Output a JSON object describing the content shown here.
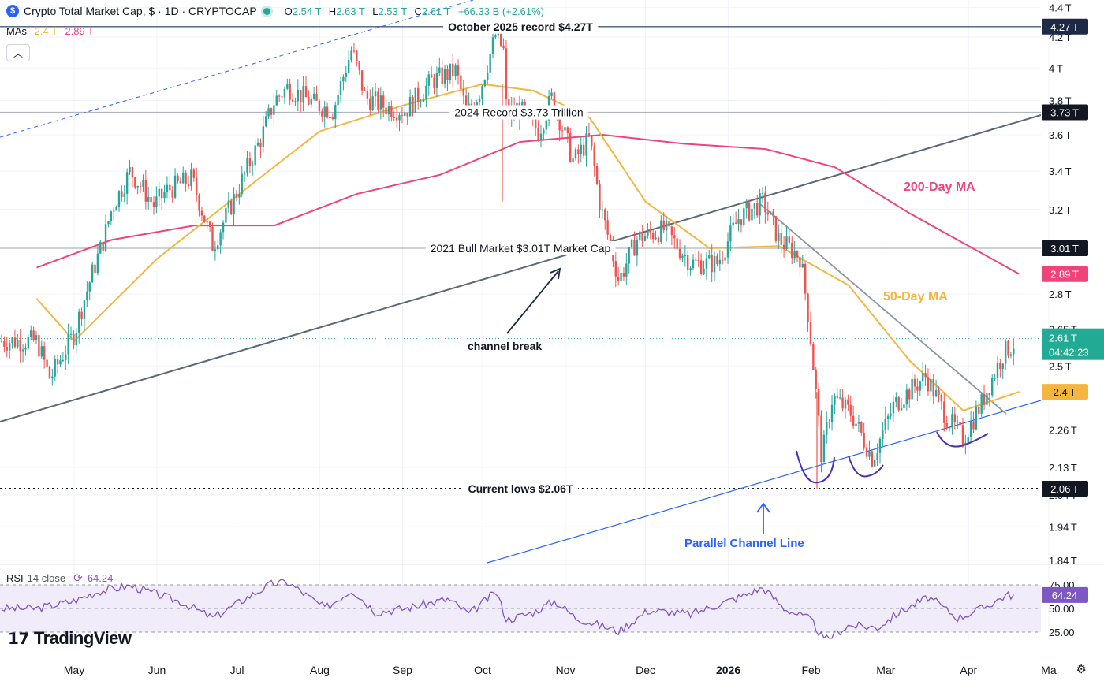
{
  "header": {
    "title": "Crypto Total Market Cap, $ · 1D · CRYPTOCAP",
    "open_label": "O",
    "open": "2.54 T",
    "high_label": "H",
    "high": "2.63 T",
    "low_label": "L",
    "low": "2.53 T",
    "close_label": "C",
    "close": "2.61 T",
    "change": "+66.33 B (+2.61%)",
    "mas_label": "MAs",
    "ma50_value": "2.4 T",
    "ma200_value": "2.89 T",
    "collapse_icon": "chevron-up-icon"
  },
  "rsi_header": {
    "label": "RSI",
    "params": "14 close",
    "value": "64.24",
    "icon": "refresh-icon"
  },
  "branding": {
    "name": "TradingView",
    "settings_icon": "gear-icon"
  },
  "colors": {
    "up": "#26a69a",
    "down": "#ef5350",
    "ma50": "#f4b63f",
    "ma200": "#f0437c",
    "rsi": "#7e57c2",
    "trendline": "#5d6778",
    "channel": "#2962ff"
  },
  "chart_data": {
    "type": "candlestick",
    "title": "Crypto Total Market Cap",
    "yscale": "log",
    "ylim": [
      "1.84 T",
      "4.4 T"
    ],
    "price_axis_ticks": [
      "4.4 T",
      "4.2 T",
      "4 T",
      "3.8 T",
      "3.6 T",
      "3.4 T",
      "3.2 T",
      "2.8 T",
      "2.65 T",
      "2.5 T",
      "2.26 T",
      "2.13 T",
      "2.04 T",
      "1.94 T",
      "1.84 T"
    ],
    "time_axis_ticks": [
      "May",
      "Jun",
      "Jul",
      "Aug",
      "Sep",
      "Oct",
      "Nov",
      "Dec",
      "2026",
      "Feb",
      "Mar",
      "Apr",
      "Ma"
    ],
    "price_path": [
      [
        "2025-04-17",
        2.6
      ],
      [
        "2025-04-22",
        2.45
      ],
      [
        "2025-05-01",
        2.63
      ],
      [
        "2025-05-08",
        2.9
      ],
      [
        "2025-05-12",
        3.05
      ],
      [
        "2025-05-15",
        3.2
      ],
      [
        "2025-05-22",
        3.4
      ],
      [
        "2025-05-31",
        3.22
      ],
      [
        "2025-06-05",
        3.3
      ],
      [
        "2025-06-14",
        3.36
      ],
      [
        "2025-06-22",
        3.02
      ],
      [
        "2025-06-30",
        3.26
      ],
      [
        "2025-07-10",
        3.58
      ],
      [
        "2025-07-15",
        3.8
      ],
      [
        "2025-07-20",
        3.88
      ],
      [
        "2025-07-30",
        3.78
      ],
      [
        "2025-08-06",
        3.74
      ],
      [
        "2025-08-13",
        4.12
      ],
      [
        "2025-08-18",
        3.82
      ],
      [
        "2025-08-26",
        3.76
      ],
      [
        "2025-09-02",
        3.74
      ],
      [
        "2025-09-12",
        3.92
      ],
      [
        "2025-09-21",
        3.98
      ],
      [
        "2025-09-25",
        3.72
      ],
      [
        "2025-09-30",
        3.86
      ],
      [
        "2025-10-06",
        4.22
      ],
      [
        "2025-10-09",
        4.1
      ],
      [
        "2025-10-10",
        3.7
      ],
      [
        "2025-10-14",
        3.76
      ],
      [
        "2025-10-22",
        3.62
      ],
      [
        "2025-10-27",
        3.82
      ],
      [
        "2025-11-04",
        3.45
      ],
      [
        "2025-11-10",
        3.58
      ],
      [
        "2025-11-14",
        3.22
      ],
      [
        "2025-11-21",
        2.86
      ],
      [
        "2025-11-28",
        3.06
      ],
      [
        "2025-12-08",
        3.1
      ],
      [
        "2025-12-18",
        2.94
      ],
      [
        "2025-12-28",
        2.94
      ],
      [
        "2026-01-05",
        3.16
      ],
      [
        "2026-01-14",
        3.24
      ],
      [
        "2026-01-20",
        3.05
      ],
      [
        "2026-01-28",
        2.97
      ],
      [
        "2026-01-31",
        2.7
      ],
      [
        "2026-02-05",
        2.16
      ],
      [
        "2026-02-09",
        2.38
      ],
      [
        "2026-02-16",
        2.32
      ],
      [
        "2026-02-24",
        2.16
      ],
      [
        "2026-03-04",
        2.35
      ],
      [
        "2026-03-16",
        2.46
      ],
      [
        "2026-03-24",
        2.3
      ],
      [
        "2026-03-30",
        2.23
      ],
      [
        "2026-04-06",
        2.36
      ],
      [
        "2026-04-14",
        2.55
      ],
      [
        "2026-04-20",
        2.61
      ]
    ],
    "ma50_path": [
      [
        "2025-04-17",
        2.78
      ],
      [
        "2025-05-01",
        2.6
      ],
      [
        "2025-06-01",
        2.96
      ],
      [
        "2025-07-01",
        3.27
      ],
      [
        "2025-08-01",
        3.62
      ],
      [
        "2025-09-01",
        3.77
      ],
      [
        "2025-10-01",
        3.9
      ],
      [
        "2025-10-20",
        3.86
      ],
      [
        "2025-11-10",
        3.7
      ],
      [
        "2025-12-01",
        3.24
      ],
      [
        "2025-12-25",
        3.01
      ],
      [
        "2026-01-20",
        3.02
      ],
      [
        "2026-02-15",
        2.84
      ],
      [
        "2026-03-10",
        2.52
      ],
      [
        "2026-03-30",
        2.33
      ],
      [
        "2026-04-20",
        2.4
      ]
    ],
    "ma200_path": [
      [
        "2025-04-17",
        2.92
      ],
      [
        "2025-05-15",
        3.05
      ],
      [
        "2025-06-15",
        3.12
      ],
      [
        "2025-07-15",
        3.12
      ],
      [
        "2025-08-15",
        3.28
      ],
      [
        "2025-09-15",
        3.38
      ],
      [
        "2025-10-15",
        3.56
      ],
      [
        "2025-11-15",
        3.6
      ],
      [
        "2025-12-15",
        3.55
      ],
      [
        "2026-01-15",
        3.52
      ],
      [
        "2026-02-10",
        3.42
      ],
      [
        "2026-03-10",
        3.18
      ],
      [
        "2026-04-20",
        2.89
      ]
    ],
    "horizontal_levels": [
      {
        "value": "4.27 T",
        "label": "October 2025 record $4.27T",
        "style": "solid-dark"
      },
      {
        "value": "3.73 T",
        "label": "2024 Record $3.73 Trillion",
        "style": "solid-gray"
      },
      {
        "value": "3.01 T",
        "label": "2021 Bull Market $3.01T Market Cap",
        "style": "solid-gray"
      },
      {
        "value": "2.06 T",
        "label": "Current lows $2.06T",
        "style": "dotted"
      }
    ],
    "annotations": [
      "channel break",
      "Parallel Channel Line",
      "200-Day MA",
      "50-Day MA"
    ],
    "price_labels": {
      "last": "2.61 T",
      "countdown": "04:42:23",
      "ma50": "2.4 T",
      "ma200": "2.89 T",
      "record": "4.27 T",
      "record2024": "3.73 T",
      "bull2021": "3.01 T",
      "lows": "2.06 T"
    },
    "rsi": {
      "ticks": [
        "75.00",
        "50.00",
        "25.00"
      ],
      "value": "64.24",
      "path": [
        [
          "2025-04-17",
          50
        ],
        [
          "2025-05-01",
          58
        ],
        [
          "2025-05-10",
          68
        ],
        [
          "2025-05-22",
          74
        ],
        [
          "2025-06-10",
          57
        ],
        [
          "2025-06-22",
          40
        ],
        [
          "2025-07-05",
          62
        ],
        [
          "2025-07-14",
          76
        ],
        [
          "2025-07-20",
          78
        ],
        [
          "2025-08-03",
          50
        ],
        [
          "2025-08-13",
          70
        ],
        [
          "2025-08-22",
          46
        ],
        [
          "2025-09-02",
          50
        ],
        [
          "2025-09-18",
          60
        ],
        [
          "2025-09-26",
          44
        ],
        [
          "2025-10-06",
          68
        ],
        [
          "2025-10-10",
          38
        ],
        [
          "2025-10-20",
          46
        ],
        [
          "2025-10-28",
          58
        ],
        [
          "2025-11-05",
          40
        ],
        [
          "2025-11-21",
          26
        ],
        [
          "2025-12-02",
          48
        ],
        [
          "2025-12-18",
          44
        ],
        [
          "2026-01-05",
          62
        ],
        [
          "2026-01-14",
          72
        ],
        [
          "2026-01-22",
          50
        ],
        [
          "2026-02-01",
          38
        ],
        [
          "2026-02-06",
          16
        ],
        [
          "2026-02-15",
          32
        ],
        [
          "2026-02-26",
          30
        ],
        [
          "2026-03-06",
          46
        ],
        [
          "2026-03-17",
          62
        ],
        [
          "2026-03-28",
          40
        ],
        [
          "2026-04-06",
          50
        ],
        [
          "2026-04-15",
          64
        ],
        [
          "2026-04-20",
          64.24
        ]
      ]
    }
  }
}
